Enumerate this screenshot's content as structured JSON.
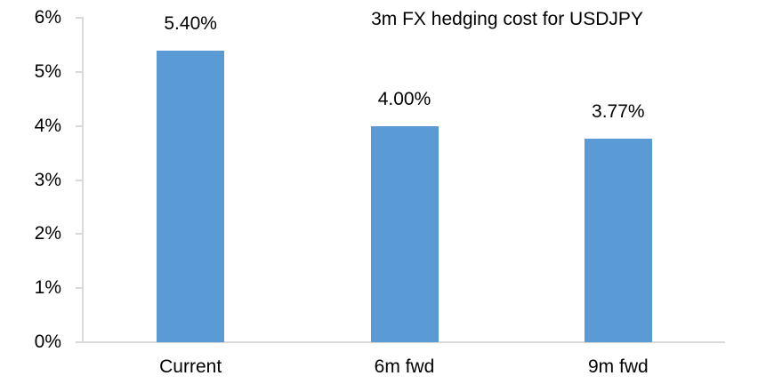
{
  "chart_data": {
    "type": "bar",
    "title": "3m FX hedging cost for USDJPY",
    "categories": [
      "Current",
      "6m fwd",
      "9m fwd"
    ],
    "values": [
      5.4,
      4.0,
      3.77
    ],
    "value_labels": [
      "5.40%",
      "4.00%",
      "3.77%"
    ],
    "y_tick_labels": [
      "0%",
      "1%",
      "2%",
      "3%",
      "4%",
      "5%",
      "6%"
    ],
    "ylim": [
      0,
      6
    ],
    "xlabel": "",
    "ylabel": "",
    "grid": false,
    "legend": false,
    "colors": {
      "bar": "#5B9BD5",
      "axis": "#D9D9D9",
      "text": "#000000",
      "background": "#FFFFFF"
    }
  }
}
